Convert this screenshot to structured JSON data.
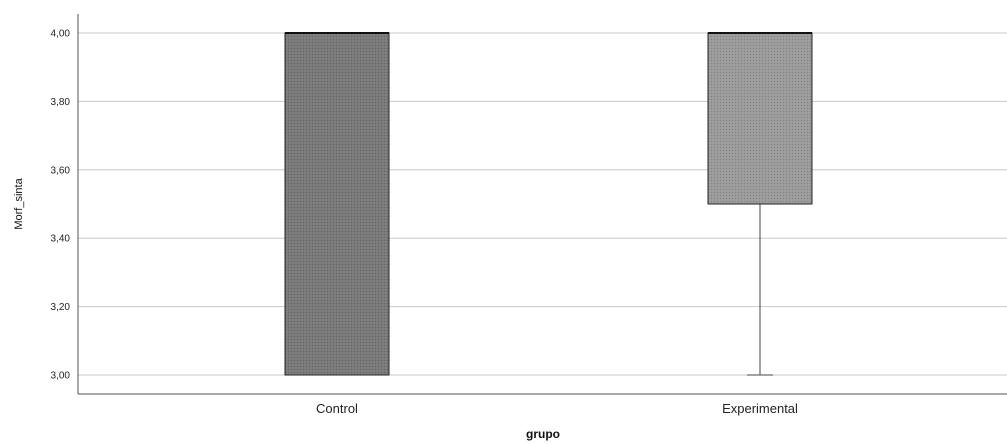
{
  "chart_data": {
    "type": "boxplot",
    "xlabel": "grupo",
    "ylabel": "Morf_sinta",
    "ylim": [
      3.0,
      4.0
    ],
    "yticks": [
      "3,00",
      "3,20",
      "3,40",
      "3,60",
      "3,80",
      "4,00"
    ],
    "ytick_values": [
      3.0,
      3.2,
      3.4,
      3.6,
      3.8,
      4.0
    ],
    "grid": true,
    "categories": [
      "Control",
      "Experimental"
    ],
    "boxes": [
      {
        "category": "Control",
        "min": 3.0,
        "q1": 3.0,
        "median": 4.0,
        "q3": 4.0,
        "max": 4.0,
        "color": "#7a7a7a"
      },
      {
        "category": "Experimental",
        "min": 3.0,
        "q1": 3.5,
        "median": 4.0,
        "q3": 4.0,
        "max": 4.0,
        "color": "#9b9b9b"
      }
    ]
  }
}
